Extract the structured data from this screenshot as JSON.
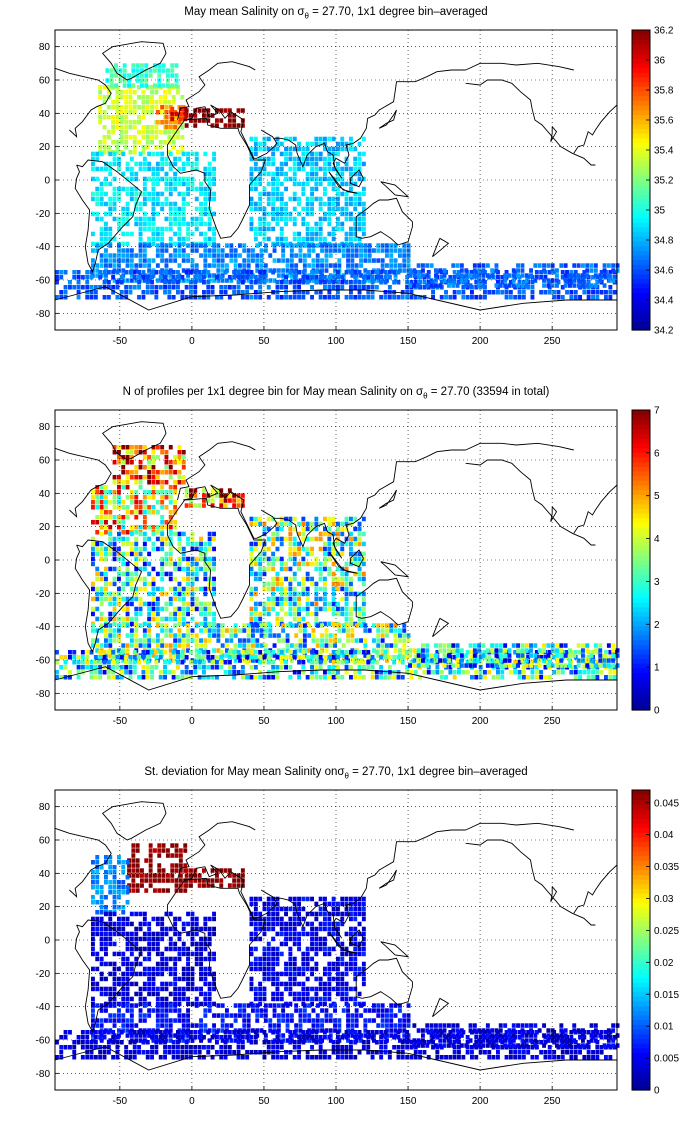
{
  "colormap": [
    "#00008f",
    "#0000ff",
    "#0080ff",
    "#00ffff",
    "#80ff80",
    "#ffff00",
    "#ff8000",
    "#ff0000",
    "#800000"
  ],
  "chart_data": [
    {
      "type": "heatmap",
      "title": {
        "prefix": "May mean Salinity on ",
        "sigma": "σ",
        "sub": "θ",
        "suffix": " = 27.70, 1x1 degree bin–averaged"
      },
      "xlabel": "",
      "ylabel": "",
      "xlim": [
        -95,
        295
      ],
      "ylim": [
        -90,
        90
      ],
      "xticks": [
        -50,
        0,
        50,
        100,
        150,
        200,
        250
      ],
      "yticks": [
        -80,
        -60,
        -40,
        -20,
        0,
        20,
        40,
        60,
        80
      ],
      "grid": true,
      "colorbar": {
        "min": 34.2,
        "max": 36.2,
        "ticks": [
          34.2,
          34.4,
          34.6,
          34.8,
          35,
          35.2,
          35.4,
          35.6,
          35.8,
          36,
          36.2
        ]
      },
      "regions": [
        {
          "x": [
            -65,
            -5
          ],
          "y": [
            15,
            55
          ],
          "value": 35.35
        },
        {
          "x": [
            -25,
            -5
          ],
          "y": [
            30,
            45
          ],
          "value": 35.7
        },
        {
          "x": [
            -15,
            -5
          ],
          "y": [
            35,
            42
          ],
          "value": 35.95
        },
        {
          "x": [
            -5,
            35
          ],
          "y": [
            31,
            43
          ],
          "value": 36.2
        },
        {
          "x": [
            -60,
            -10
          ],
          "y": [
            55,
            70
          ],
          "value": 35.05
        },
        {
          "x": [
            -70,
            15
          ],
          "y": [
            -40,
            15
          ],
          "value": 34.92
        },
        {
          "x": [
            40,
            120
          ],
          "y": [
            -40,
            25
          ],
          "value": 34.85
        },
        {
          "x": [
            -70,
            150
          ],
          "y": [
            -62,
            -40
          ],
          "value": 34.72
        },
        {
          "x": [
            -95,
            295
          ],
          "y": [
            -72,
            -55
          ],
          "value": 34.62
        },
        {
          "x": [
            150,
            295
          ],
          "y": [
            -65,
            -52
          ],
          "value": 34.65
        }
      ]
    },
    {
      "type": "heatmap",
      "title": {
        "prefix": "N of profiles per 1x1 degree bin for May mean Salinity on ",
        "sigma": "σ",
        "sub": "θ",
        "suffix": " = 27.70 (33594 in total)"
      },
      "xlabel": "",
      "ylabel": "",
      "xlim": [
        -95,
        295
      ],
      "ylim": [
        -90,
        90
      ],
      "xticks": [
        -50,
        0,
        50,
        100,
        150,
        200,
        250
      ],
      "yticks": [
        -80,
        -60,
        -40,
        -20,
        0,
        20,
        40,
        60,
        80
      ],
      "grid": true,
      "colorbar": {
        "min": 0,
        "max": 7,
        "ticks": [
          0,
          1,
          2,
          3,
          4,
          5,
          6,
          7
        ]
      },
      "regions": [
        {
          "x": [
            -55,
            -5
          ],
          "y": [
            45,
            68
          ],
          "value": 5.5
        },
        {
          "x": [
            -70,
            -10
          ],
          "y": [
            15,
            45
          ],
          "value": 4.5
        },
        {
          "x": [
            -5,
            35
          ],
          "y": [
            31,
            43
          ],
          "value": 5.5
        },
        {
          "x": [
            -70,
            15
          ],
          "y": [
            -40,
            15
          ],
          "value": 2.8
        },
        {
          "x": [
            40,
            120
          ],
          "y": [
            -40,
            25
          ],
          "value": 3.2
        },
        {
          "x": [
            -70,
            150
          ],
          "y": [
            -62,
            -40
          ],
          "value": 3.0
        },
        {
          "x": [
            -95,
            295
          ],
          "y": [
            -72,
            -55
          ],
          "value": 2.6
        },
        {
          "x": [
            150,
            295
          ],
          "y": [
            -65,
            -52
          ],
          "value": 2.5
        }
      ]
    },
    {
      "type": "heatmap",
      "title": {
        "prefix": "St. deviation for May mean Salinity on",
        "sigma": "σ",
        "sub": "θ",
        "suffix": " = 27.70, 1x1 degree bin–averaged"
      },
      "xlabel": "",
      "ylabel": "",
      "xlim": [
        -95,
        295
      ],
      "ylim": [
        -90,
        90
      ],
      "xticks": [
        -50,
        0,
        50,
        100,
        150,
        200,
        250
      ],
      "yticks": [
        -80,
        -60,
        -40,
        -20,
        0,
        20,
        40,
        60,
        80
      ],
      "grid": true,
      "colorbar": {
        "min": 0,
        "max": 0.047,
        "ticks": [
          0,
          0.005,
          0.01,
          0.015,
          0.02,
          0.025,
          0.03,
          0.035,
          0.04,
          0.045
        ]
      },
      "regions": [
        {
          "x": [
            -45,
            -5
          ],
          "y": [
            28,
            58
          ],
          "value": 0.047
        },
        {
          "x": [
            -5,
            35
          ],
          "y": [
            31,
            43
          ],
          "value": 0.047
        },
        {
          "x": [
            -70,
            -45
          ],
          "y": [
            15,
            50
          ],
          "value": 0.012
        },
        {
          "x": [
            -70,
            15
          ],
          "y": [
            -40,
            15
          ],
          "value": 0.004
        },
        {
          "x": [
            40,
            120
          ],
          "y": [
            -40,
            25
          ],
          "value": 0.005
        },
        {
          "x": [
            -70,
            150
          ],
          "y": [
            -62,
            -40
          ],
          "value": 0.006
        },
        {
          "x": [
            -95,
            295
          ],
          "y": [
            -72,
            -55
          ],
          "value": 0.004
        },
        {
          "x": [
            150,
            295
          ],
          "y": [
            -65,
            -52
          ],
          "value": 0.004
        }
      ]
    }
  ]
}
